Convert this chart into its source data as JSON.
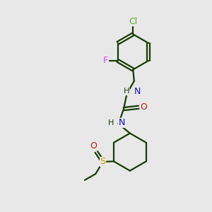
{
  "bg_color": "#e8e8e8",
  "bond_color": "#1a3a0a",
  "atom_colors": {
    "Cl": "#5ab520",
    "F": "#e040fb",
    "N": "#1010cc",
    "O": "#cc1010",
    "S": "#c8a000",
    "C": "#1a3a0a",
    "H": "#1a3a0a"
  },
  "line_width": 1.6,
  "font_size": 8.5,
  "figsize": [
    3.0,
    3.0
  ],
  "dpi": 100
}
